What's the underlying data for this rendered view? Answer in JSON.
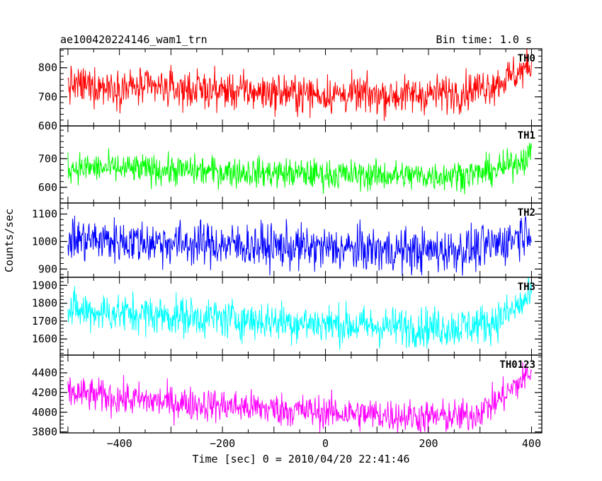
{
  "header": {
    "left_title": "ae100420224146_wam1_trn",
    "right_title": "Bin time: 1.0 s"
  },
  "chart_data": {
    "type": "line",
    "xlabel": "Time [sec] 0 = 2010/04/20 22:41:46",
    "ylabel": "Counts/sec",
    "xlim": [
      -515,
      420
    ],
    "x_range": [
      -500,
      400
    ],
    "x_ticks": [
      -400,
      -200,
      0,
      200,
      400
    ],
    "x_tick_labels": [
      "−400",
      "−200",
      "0",
      "200",
      "400"
    ],
    "bin_time": 1.0,
    "panels": [
      {
        "name": "TH0",
        "color": "#ff0000",
        "ylim": [
          600,
          865
        ],
        "y_ticks": [
          600,
          700,
          800
        ],
        "y_tick_labels": [
          "600",
          "700",
          "800"
        ],
        "trend": [
          [
            -500,
            740
          ],
          [
            -300,
            728
          ],
          [
            0,
            708
          ],
          [
            150,
            705
          ],
          [
            260,
            715
          ],
          [
            330,
            745
          ],
          [
            400,
            805
          ]
        ],
        "noise": 32
      },
      {
        "name": "TH1",
        "color": "#00ff00",
        "ylim": [
          545,
          815
        ],
        "y_ticks": [
          600,
          700
        ],
        "y_tick_labels": [
          "600",
          "700"
        ],
        "trend": [
          [
            -500,
            670
          ],
          [
            -300,
            660
          ],
          [
            0,
            645
          ],
          [
            200,
            640
          ],
          [
            300,
            648
          ],
          [
            350,
            670
          ],
          [
            400,
            715
          ]
        ],
        "noise": 26
      },
      {
        "name": "TH2",
        "color": "#0000ff",
        "ylim": [
          870,
          1140
        ],
        "y_ticks": [
          900,
          1000,
          1100
        ],
        "y_tick_labels": [
          "900",
          "1000",
          "1100"
        ],
        "trend": [
          [
            -500,
            1010
          ],
          [
            -300,
            995
          ],
          [
            0,
            975
          ],
          [
            200,
            965
          ],
          [
            300,
            975
          ],
          [
            350,
            1000
          ],
          [
            400,
            1050
          ]
        ],
        "noise": 40
      },
      {
        "name": "TH3",
        "color": "#00ffff",
        "ylim": [
          1510,
          1945
        ],
        "y_ticks": [
          1600,
          1700,
          1800,
          1900
        ],
        "y_tick_labels": [
          "1600",
          "1700",
          "1800",
          "1900"
        ],
        "trend": [
          [
            -500,
            1760
          ],
          [
            -300,
            1730
          ],
          [
            -100,
            1700
          ],
          [
            100,
            1670
          ],
          [
            250,
            1665
          ],
          [
            320,
            1690
          ],
          [
            360,
            1750
          ],
          [
            400,
            1840
          ]
        ],
        "noise": 55
      },
      {
        "name": "TH0123",
        "color": "#ff00ff",
        "ylim": [
          3790,
          4580
        ],
        "y_ticks": [
          3800,
          4000,
          4200,
          4400
        ],
        "y_tick_labels": [
          "3800",
          "4000",
          "4200",
          "4400"
        ],
        "trend": [
          [
            -500,
            4200
          ],
          [
            -400,
            4140
          ],
          [
            -300,
            4100
          ],
          [
            0,
            4000
          ],
          [
            200,
            3950
          ],
          [
            280,
            3960
          ],
          [
            330,
            4100
          ],
          [
            370,
            4270
          ],
          [
            400,
            4420
          ]
        ],
        "noise": 85
      }
    ]
  }
}
